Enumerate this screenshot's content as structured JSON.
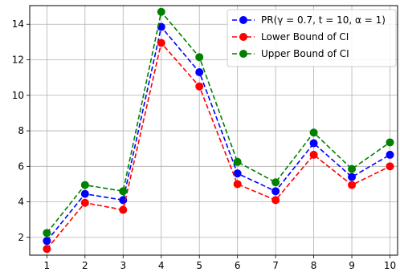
{
  "chart_data": {
    "type": "line",
    "title": "",
    "xlabel": "",
    "ylabel": "",
    "x": [
      1,
      2,
      3,
      4,
      5,
      6,
      7,
      8,
      9,
      10
    ],
    "xlim": [
      0.55,
      10.2
    ],
    "ylim": [
      1.0,
      15.05
    ],
    "xticks": [
      1,
      2,
      3,
      4,
      5,
      6,
      7,
      8,
      9,
      10
    ],
    "yticks": [
      2,
      4,
      6,
      8,
      10,
      12,
      14
    ],
    "grid": true,
    "legend_position": "top-right",
    "series": [
      {
        "name": "PR(γ = 0.7, t = 10, α = 1)",
        "color": "#0000ff",
        "linestyle": "dashed",
        "marker": "circle",
        "values": [
          1.8,
          4.45,
          4.1,
          13.85,
          11.3,
          5.6,
          4.6,
          7.3,
          5.4,
          6.65
        ]
      },
      {
        "name": "Lower Bound of CI",
        "color": "#ff0000",
        "linestyle": "dashed",
        "marker": "circle",
        "values": [
          1.35,
          3.95,
          3.55,
          12.95,
          10.5,
          5.0,
          4.1,
          6.65,
          4.95,
          6.0
        ]
      },
      {
        "name": "Upper Bound of CI",
        "color": "#008000",
        "linestyle": "dashed",
        "marker": "circle",
        "values": [
          2.25,
          4.95,
          4.6,
          14.7,
          12.15,
          6.25,
          5.1,
          7.9,
          5.85,
          7.35
        ]
      }
    ]
  }
}
